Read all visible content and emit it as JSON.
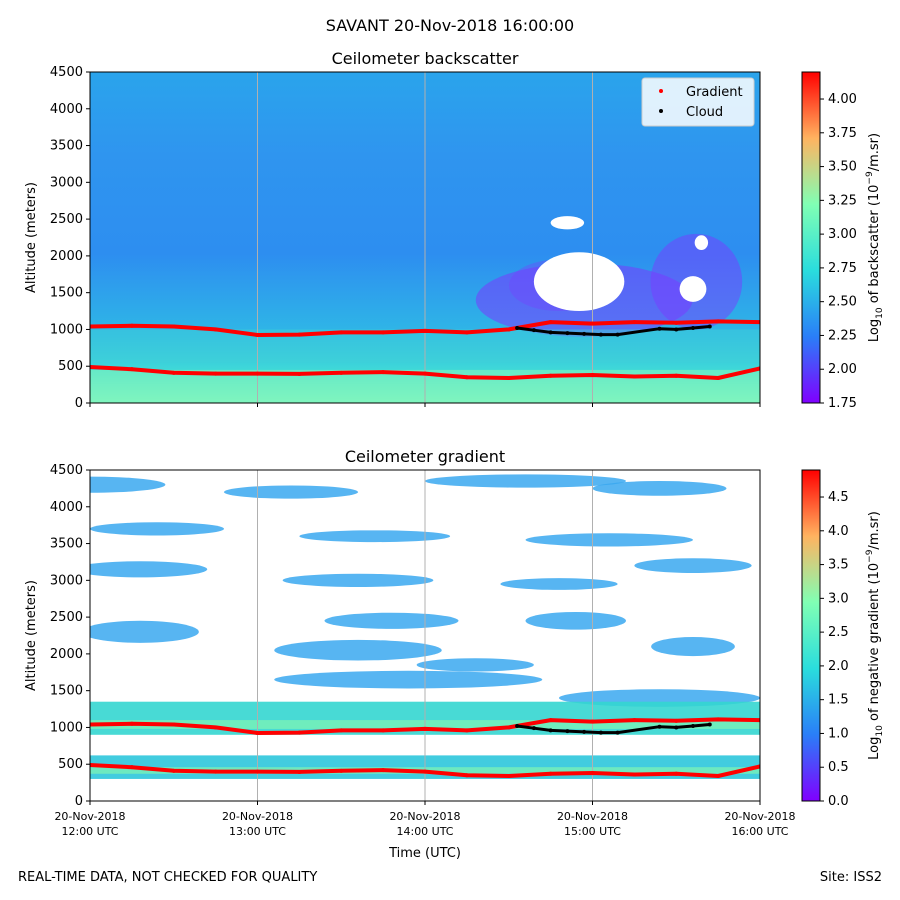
{
  "suptitle": "SAVANT 20-Nov-2018 16:00:00",
  "footer": {
    "left": "REAL-TIME DATA, NOT CHECKED FOR QUALITY",
    "right": "Site: ISS2"
  },
  "colors": {
    "gradient_marker": "#ff0000",
    "cloud_marker": "#000000",
    "colormap": "rainbow"
  },
  "chart_data": [
    {
      "type": "heatmap",
      "title": "Ceilometer backscatter",
      "ylabel": "Altitude (meters)",
      "xlabel": "",
      "xlim": [
        12.0,
        16.0
      ],
      "ylim": [
        0,
        4500
      ],
      "yticks": [
        0,
        500,
        1000,
        1500,
        2000,
        2500,
        3000,
        3500,
        4000,
        4500
      ],
      "xgrid": true,
      "xticks": [
        12,
        13,
        14,
        15,
        16
      ],
      "colorbar": {
        "label": "Log10 of backscatter (10^-9/m.sr)",
        "label_parts": [
          "Log",
          "10",
          " of backscatter (10",
          "−9",
          "/m.sr)"
        ],
        "range": [
          1.75,
          4.2
        ],
        "ticks": [
          "1.75",
          "2.00",
          "2.25",
          "2.50",
          "2.75",
          "3.00",
          "3.25",
          "3.50",
          "3.75",
          "4.00"
        ]
      },
      "legend": {
        "placement": "top-right",
        "entries": [
          "Gradient",
          "Cloud"
        ]
      },
      "series": [
        {
          "name": "Gradient",
          "x": [
            12.0,
            12.25,
            12.5,
            12.75,
            13.0,
            13.25,
            13.5,
            13.75,
            14.0,
            14.25,
            14.5,
            14.75,
            15.0,
            15.25,
            15.5,
            15.75,
            16.0
          ],
          "y": [
            1040,
            1050,
            1040,
            1000,
            925,
            930,
            960,
            960,
            980,
            960,
            1000,
            1100,
            1080,
            1100,
            1090,
            1110,
            1100
          ]
        },
        {
          "name": "Gradient",
          "x": [
            12.0,
            12.25,
            12.5,
            12.75,
            13.0,
            13.25,
            13.5,
            13.75,
            14.0,
            14.25,
            14.5,
            14.75,
            15.0,
            15.25,
            15.5,
            15.75,
            16.0
          ],
          "y": [
            490,
            460,
            410,
            400,
            400,
            395,
            410,
            420,
            400,
            350,
            340,
            370,
            380,
            360,
            370,
            340,
            470
          ]
        },
        {
          "name": "Cloud",
          "x": [
            14.55,
            14.65,
            14.75,
            14.85,
            14.95,
            15.05,
            15.15,
            15.4,
            15.5,
            15.6,
            15.7
          ],
          "y": [
            1020,
            990,
            960,
            950,
            940,
            930,
            930,
            1010,
            1000,
            1020,
            1040
          ]
        }
      ]
    },
    {
      "type": "heatmap",
      "title": "Ceilometer gradient",
      "ylabel": "Altitude (meters)",
      "xlabel": "Time (UTC)",
      "xlim": [
        12.0,
        16.0
      ],
      "ylim": [
        0,
        4500
      ],
      "yticks": [
        0,
        500,
        1000,
        1500,
        2000,
        2500,
        3000,
        3500,
        4000,
        4500
      ],
      "xgrid": true,
      "xticks": [
        12,
        13,
        14,
        15,
        16
      ],
      "xticklabels": [
        [
          "20-Nov-2018",
          "12:00 UTC"
        ],
        [
          "20-Nov-2018",
          "13:00 UTC"
        ],
        [
          "20-Nov-2018",
          "14:00 UTC"
        ],
        [
          "20-Nov-2018",
          "15:00 UTC"
        ],
        [
          "20-Nov-2018",
          "16:00 UTC"
        ]
      ],
      "colorbar": {
        "label": "Log10 of negative gradient (10^-9/m.sr)",
        "label_parts": [
          "Log",
          "10",
          " of negative gradient (10",
          "−9",
          "/m.sr)"
        ],
        "range": [
          0.0,
          4.9
        ],
        "ticks": [
          "0.0",
          "0.5",
          "1.0",
          "1.5",
          "2.0",
          "2.5",
          "3.0",
          "3.5",
          "4.0",
          "4.5"
        ]
      },
      "series": [
        {
          "name": "Gradient",
          "x": [
            12.0,
            12.25,
            12.5,
            12.75,
            13.0,
            13.25,
            13.5,
            13.75,
            14.0,
            14.25,
            14.5,
            14.75,
            15.0,
            15.25,
            15.5,
            15.75,
            16.0
          ],
          "y": [
            1040,
            1050,
            1040,
            1000,
            925,
            930,
            960,
            960,
            980,
            960,
            1000,
            1100,
            1080,
            1100,
            1090,
            1110,
            1100
          ]
        },
        {
          "name": "Gradient",
          "x": [
            12.0,
            12.25,
            12.5,
            12.75,
            13.0,
            13.25,
            13.5,
            13.75,
            14.0,
            14.25,
            14.5,
            14.75,
            15.0,
            15.25,
            15.5,
            15.75,
            16.0
          ],
          "y": [
            490,
            460,
            410,
            400,
            400,
            395,
            410,
            420,
            400,
            350,
            340,
            370,
            380,
            360,
            370,
            340,
            470
          ]
        },
        {
          "name": "Cloud",
          "x": [
            14.55,
            14.65,
            14.75,
            14.85,
            14.95,
            15.05,
            15.15,
            15.4,
            15.5,
            15.6,
            15.7
          ],
          "y": [
            1020,
            990,
            960,
            950,
            940,
            930,
            930,
            1010,
            1000,
            1020,
            1040
          ]
        }
      ]
    }
  ]
}
